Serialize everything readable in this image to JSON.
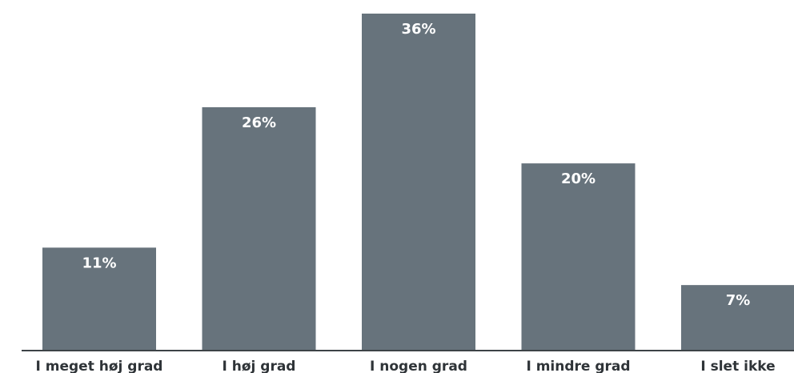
{
  "chart_data": {
    "type": "bar",
    "categories": [
      "I meget høj grad",
      "I høj grad",
      "I nogen grad",
      "I mindre grad",
      "I slet ikke"
    ],
    "values": [
      11,
      26,
      36,
      20,
      7
    ],
    "data_labels": [
      "11%",
      "26%",
      "36%",
      "20%",
      "7%"
    ],
    "ylim": [
      0,
      36
    ],
    "unit": "%",
    "grid": false,
    "legend": "none",
    "bar_color": "#67737c"
  }
}
